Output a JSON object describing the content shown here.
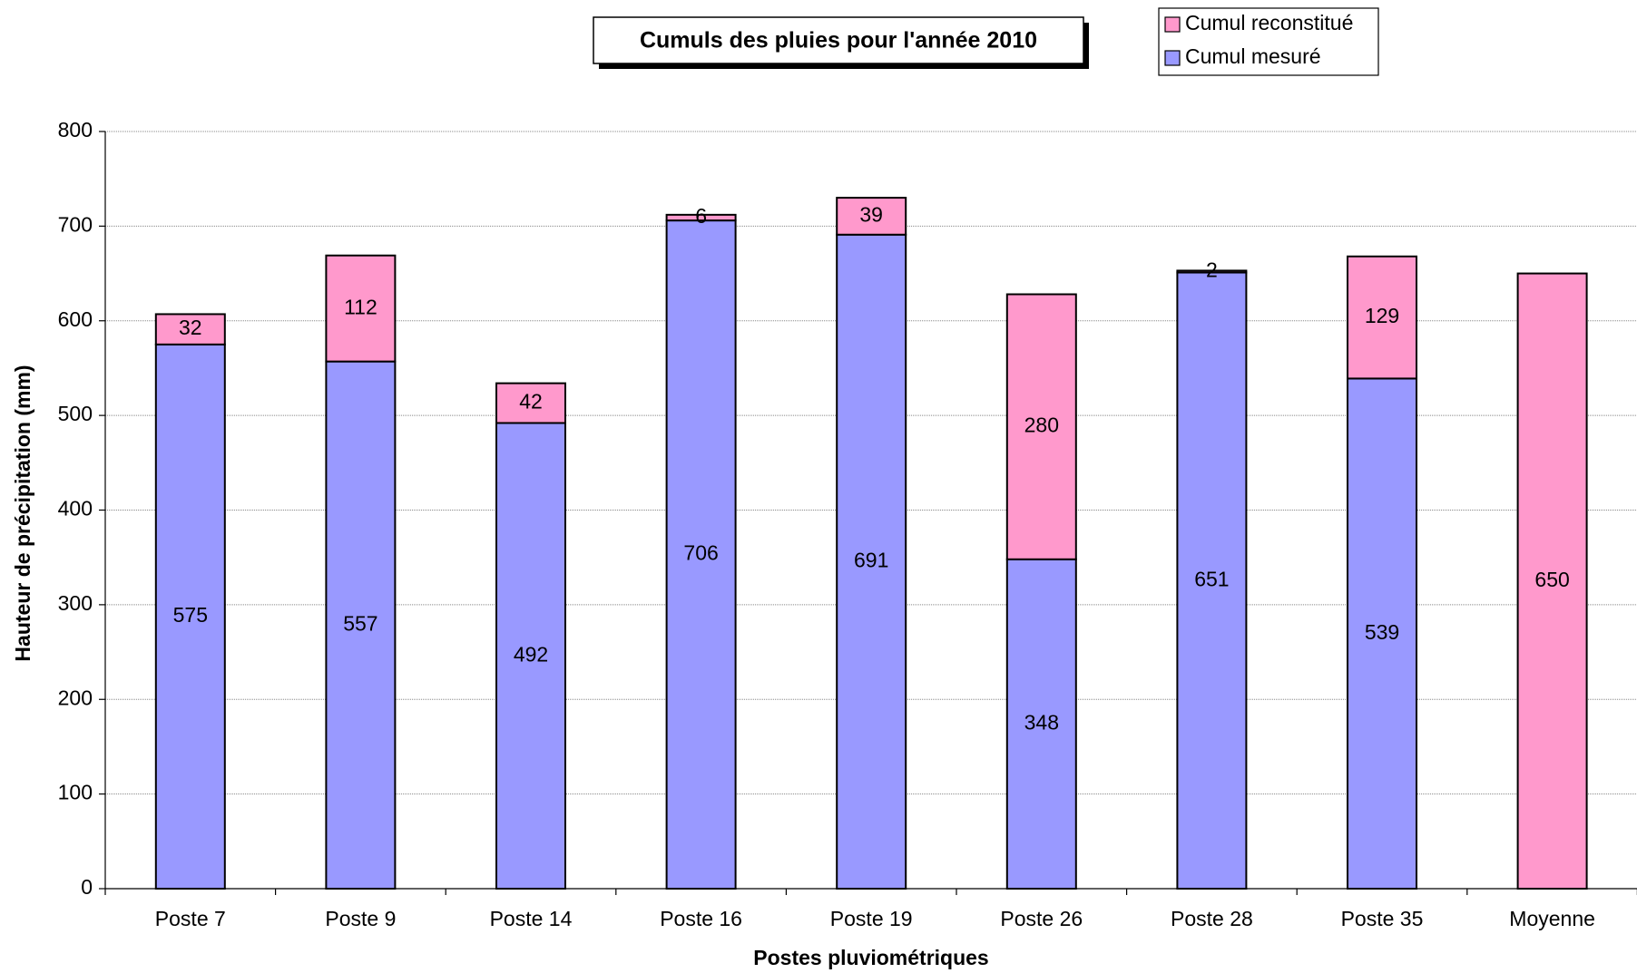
{
  "chart_data": {
    "type": "stacked_bar",
    "title": "Cumuls des pluies pour l'année 2010",
    "x_label": "Postes pluviométriques",
    "y_label": "Hauteur de précipitation (mm)",
    "categories": [
      "Poste 7",
      "Poste 9",
      "Poste 14",
      "Poste 16",
      "Poste 19",
      "Poste 26",
      "Poste 28",
      "Poste 35",
      "Moyenne"
    ],
    "series": [
      {
        "name": "Cumul mesuré",
        "color": "#9999ff",
        "values": [
          575,
          557,
          492,
          706,
          691,
          348,
          651,
          539,
          null
        ]
      },
      {
        "name": "Cumul reconstitué",
        "color": "#ff99cc",
        "values": [
          32,
          112,
          42,
          6,
          39,
          280,
          2,
          129,
          650
        ]
      }
    ],
    "ylim": [
      0,
      800
    ],
    "yticks": [
      0,
      100,
      200,
      300,
      400,
      500,
      600,
      700,
      800
    ],
    "grid": true
  }
}
